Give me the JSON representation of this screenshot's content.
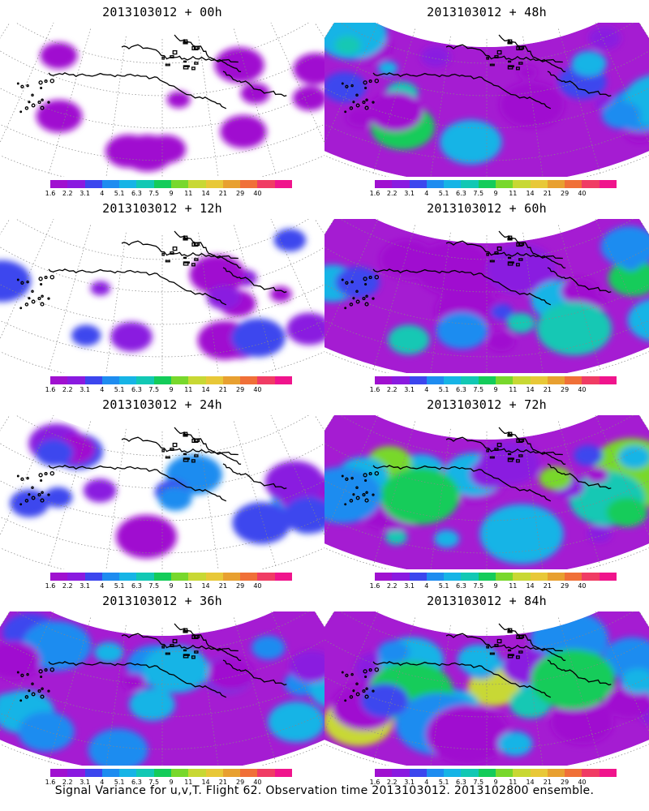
{
  "panels": [
    {
      "title": "2013103012 + 00h",
      "intensity": 0.1
    },
    {
      "title": "2013103012 + 48h",
      "intensity": 0.55
    },
    {
      "title": "2013103012 + 12h",
      "intensity": 0.22
    },
    {
      "title": "2013103012 + 60h",
      "intensity": 0.62
    },
    {
      "title": "2013103012 + 24h",
      "intensity": 0.36
    },
    {
      "title": "2013103012 + 72h",
      "intensity": 0.72
    },
    {
      "title": "2013103012 + 36h",
      "intensity": 0.45
    },
    {
      "title": "2013103012 + 84h",
      "intensity": 0.78
    }
  ],
  "colorbar": {
    "colors": [
      "#a010d0",
      "#8a1ae0",
      "#3c46ee",
      "#1e8cf0",
      "#16b4e6",
      "#12c8b4",
      "#14cc5a",
      "#78d82c",
      "#c8d834",
      "#e8c838",
      "#e8a030",
      "#f07038",
      "#f03c64",
      "#f0148c"
    ],
    "labels": [
      "1.6",
      "2.2",
      "3.1",
      "4",
      "5.1",
      "6.3",
      "7.5",
      "9",
      "11",
      "14",
      "21",
      "29",
      "40"
    ]
  },
  "footer": "Signal Variance for u,v,T. Flight 62. Observation time 2013103012. 2013102800 ensemble."
}
